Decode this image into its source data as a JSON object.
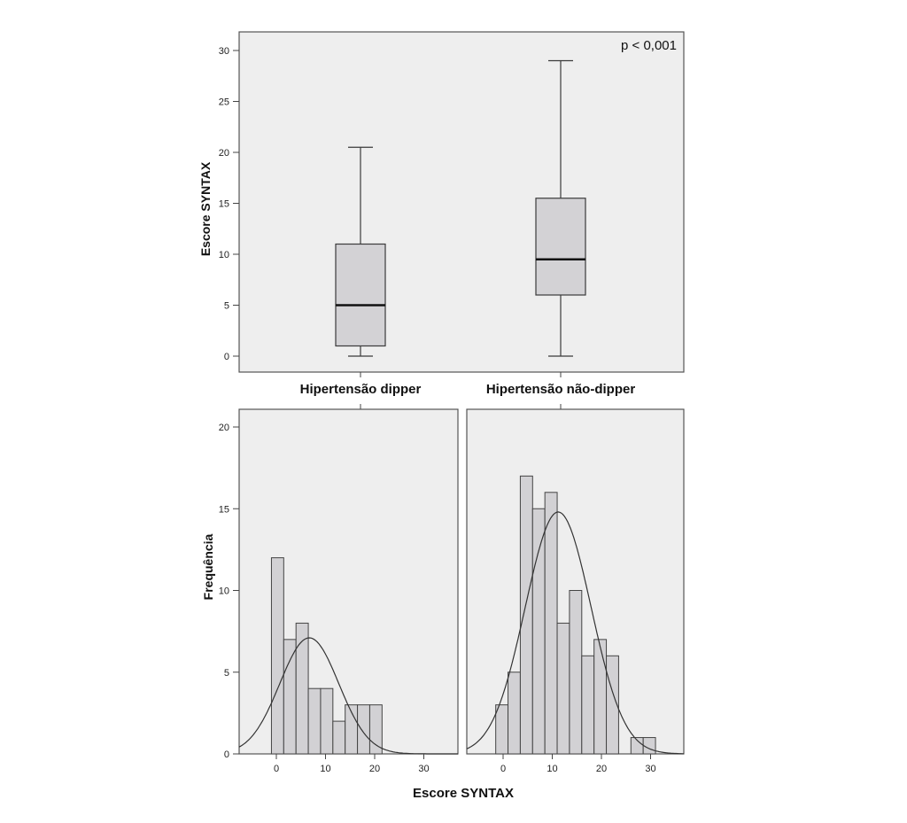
{
  "chart_data": [
    {
      "type": "box",
      "ylabel": "Escore SYNTAX",
      "ylim": [
        0,
        31
      ],
      "yticks": [
        0,
        5,
        10,
        15,
        20,
        25,
        30
      ],
      "annotation": "p < 0,001",
      "grid": false,
      "categories": [
        "Hipertensão dipper",
        "Hipertensão não-dipper"
      ],
      "boxes": [
        {
          "category": "Hipertensão dipper",
          "min": 0,
          "q1": 1,
          "median": 5,
          "q3": 11,
          "max": 20.5
        },
        {
          "category": "Hipertensão não-dipper",
          "min": 0,
          "q1": 6,
          "median": 9.5,
          "q3": 15.5,
          "max": 29
        }
      ]
    },
    {
      "type": "bar",
      "subtype": "histogram",
      "panel": "Hipertensão dipper",
      "xlabel": "Escore SYNTAX",
      "ylabel": "Frequência",
      "xlim": [
        -8,
        37
      ],
      "ylim": [
        0,
        21
      ],
      "xticks": [
        0,
        10,
        20,
        30
      ],
      "yticks": [
        0,
        5,
        10,
        15,
        20
      ],
      "bin_width": 2.5,
      "bins": [
        {
          "start": -1,
          "count": 12
        },
        {
          "start": 1.5,
          "count": 7
        },
        {
          "start": 4,
          "count": 8
        },
        {
          "start": 6.5,
          "count": 4
        },
        {
          "start": 9,
          "count": 4
        },
        {
          "start": 11.5,
          "count": 2
        },
        {
          "start": 14,
          "count": 3
        },
        {
          "start": 16.5,
          "count": 3
        },
        {
          "start": 19,
          "count": 3
        }
      ],
      "normal_curve": {
        "mean": 6.7,
        "sd": 6.0,
        "peak": 7.1
      }
    },
    {
      "type": "bar",
      "subtype": "histogram",
      "panel": "Hipertensão não-dipper",
      "xlabel": "Escore SYNTAX",
      "ylabel": "Frequência",
      "xlim": [
        -8,
        37
      ],
      "ylim": [
        0,
        21
      ],
      "xticks": [
        0,
        10,
        20,
        30
      ],
      "yticks": [
        0,
        5,
        10,
        15,
        20
      ],
      "bin_width": 2.5,
      "bins": [
        {
          "start": -1.5,
          "count": 3
        },
        {
          "start": 1,
          "count": 5
        },
        {
          "start": 3.5,
          "count": 17
        },
        {
          "start": 6,
          "count": 15
        },
        {
          "start": 8.5,
          "count": 16
        },
        {
          "start": 11,
          "count": 8
        },
        {
          "start": 13.5,
          "count": 10
        },
        {
          "start": 16,
          "count": 6
        },
        {
          "start": 18.5,
          "count": 7
        },
        {
          "start": 21,
          "count": 6
        },
        {
          "start": 26,
          "count": 1
        },
        {
          "start": 28.5,
          "count": 1
        }
      ],
      "normal_curve": {
        "mean": 11.2,
        "sd": 6.7,
        "peak": 14.8
      }
    }
  ],
  "colors": {
    "panel_bg": "#eeeeee",
    "box_fill": "#d3d2d5",
    "bar_fill": "#d2d1d4",
    "stroke": "#3a3a3a"
  },
  "shared_xlabel": "Escore SYNTAX"
}
